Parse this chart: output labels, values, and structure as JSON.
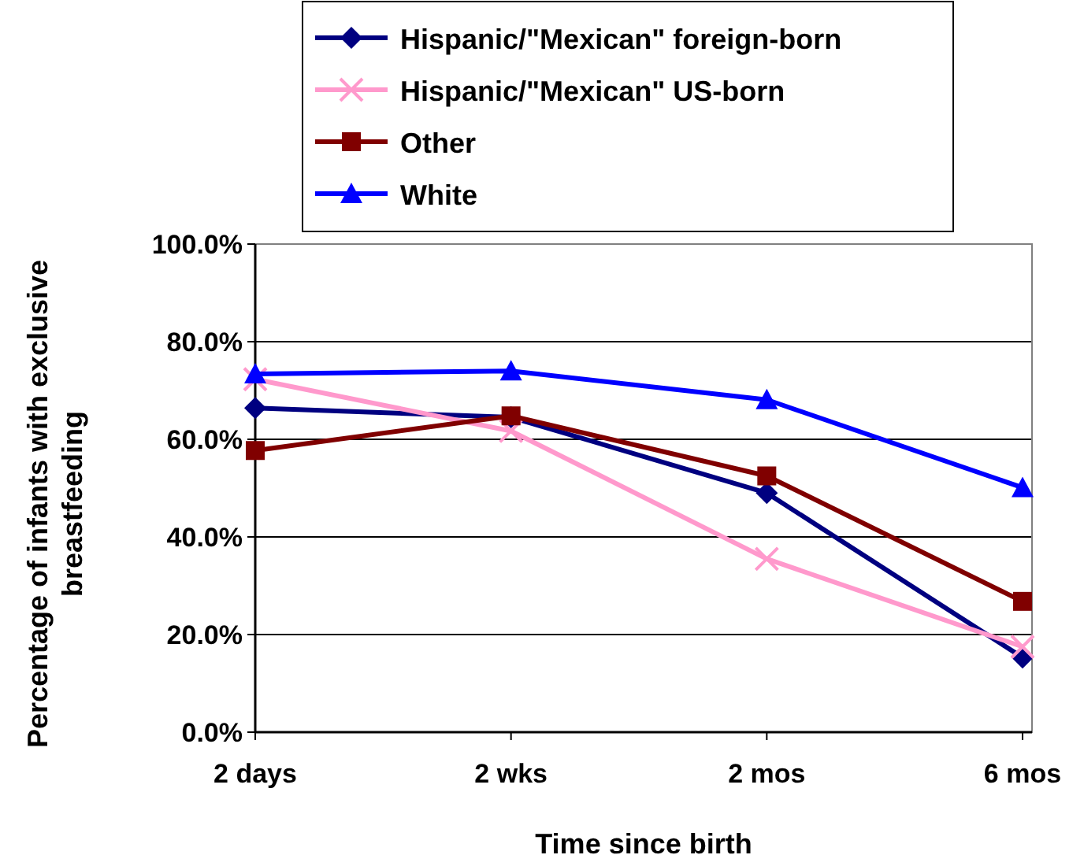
{
  "chart_data": {
    "type": "line",
    "xlabel": "Time since birth",
    "ylabel": "Percentage of infants with exclusive breastfeeding",
    "categories": [
      "2 days",
      "2 wks",
      "2 mos",
      "6 mos"
    ],
    "ylim": [
      0,
      100
    ],
    "yticks": [
      {
        "value": 0,
        "label": "0.0%"
      },
      {
        "value": 20,
        "label": "20.0%"
      },
      {
        "value": 40,
        "label": "40.0%"
      },
      {
        "value": 60,
        "label": "60.0%"
      },
      {
        "value": 80,
        "label": "80.0%"
      },
      {
        "value": 100,
        "label": "100.0%"
      }
    ],
    "grid": "y",
    "legend": "top",
    "series": [
      {
        "name": "Hispanic/\"Mexican\" foreign-born",
        "color": "#000080",
        "marker": "diamond",
        "values": [
          66.4,
          64.5,
          49.0,
          15.3
        ]
      },
      {
        "name": "Hispanic/\"Mexican\" US-born",
        "color": "#ff99cc",
        "marker": "cross",
        "values": [
          72.3,
          61.7,
          35.5,
          17.5
        ]
      },
      {
        "name": "Other",
        "color": "#800000",
        "marker": "square",
        "values": [
          57.7,
          64.8,
          52.5,
          26.8
        ]
      },
      {
        "name": "White",
        "color": "#0000ff",
        "marker": "triangle",
        "values": [
          73.4,
          74.0,
          68.1,
          50.1
        ]
      }
    ]
  }
}
